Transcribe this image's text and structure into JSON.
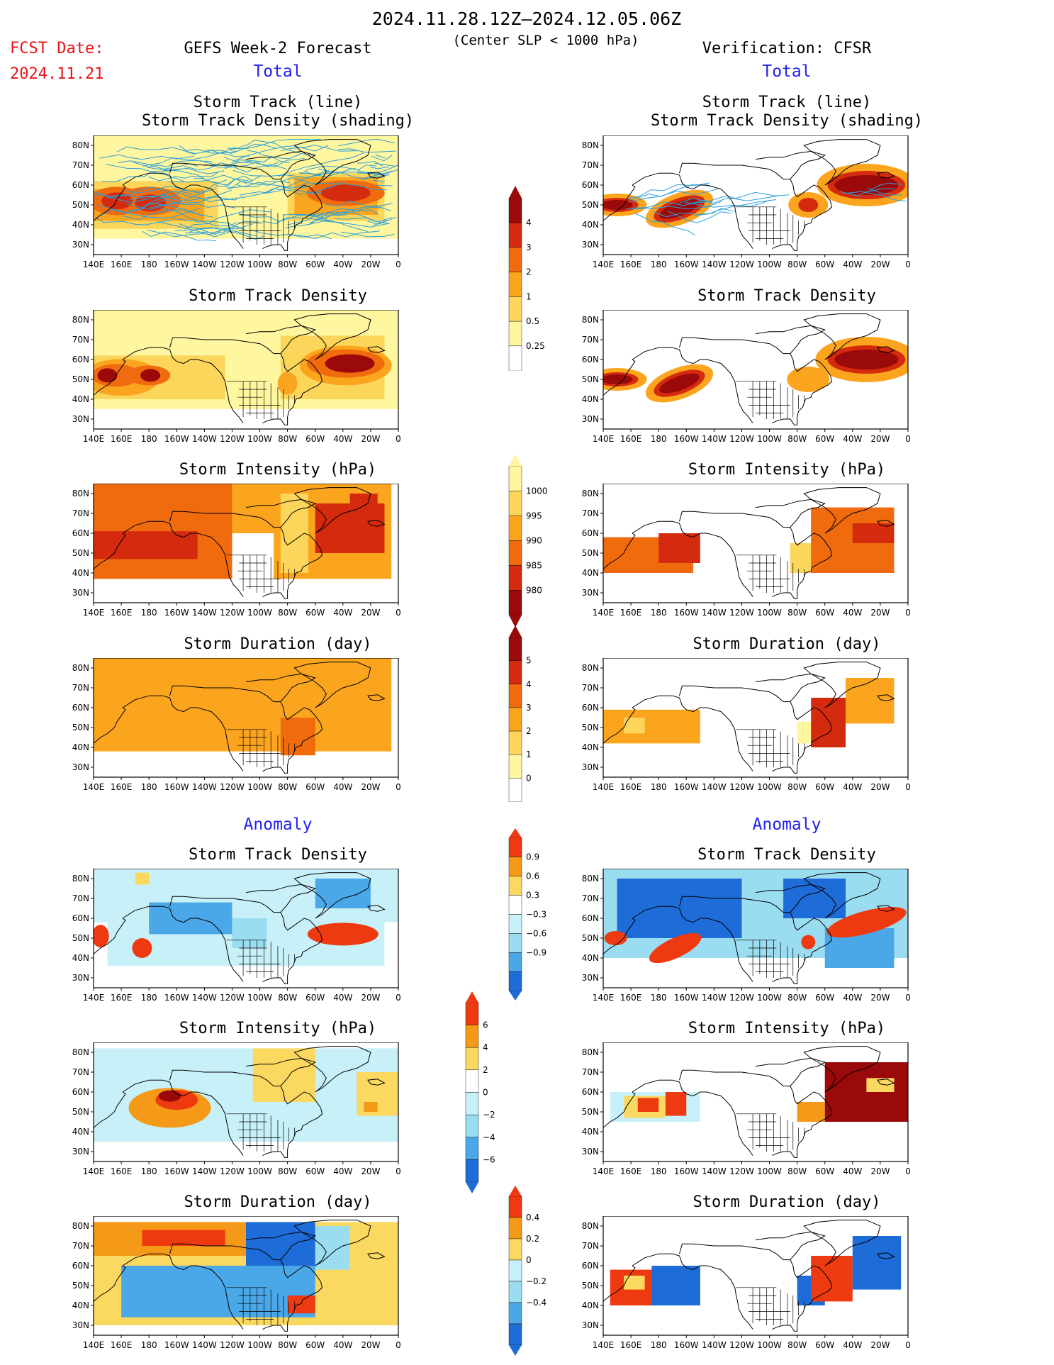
{
  "header": {
    "date_range": "2024.11.28.12Z–2024.12.05.06Z",
    "condition": "(Center SLP < 1000 hPa)",
    "fcst_label": "FCST Date:",
    "fcst_date": "2024.11.21",
    "left_model": "GEFS Week-2 Forecast",
    "right_model": "Verification: CFSR"
  },
  "sections": {
    "total": "Total",
    "anomaly": "Anomaly"
  },
  "panel_titles": {
    "track_line": "Storm Track (line)",
    "track_shading": "Storm Track Density (shading)",
    "density": "Storm Track Density",
    "intensity": "Storm Intensity (hPa)",
    "duration": "Storm Duration (day)"
  },
  "axes": {
    "lat": [
      "80N",
      "70N",
      "60N",
      "50N",
      "40N",
      "30N"
    ],
    "lon": [
      "140E",
      "160E",
      "180",
      "160W",
      "140W",
      "120W",
      "100W",
      "80W",
      "60W",
      "40W",
      "20W",
      "0"
    ]
  },
  "colorbars": {
    "density_total": [
      "4",
      "3",
      "2",
      "1",
      "0.5",
      "0.25"
    ],
    "intensity_total": [
      "1000",
      "995",
      "990",
      "985",
      "980"
    ],
    "duration_total": [
      "5",
      "4",
      "3",
      "2",
      "1",
      "0"
    ],
    "density_anom": [
      "0.9",
      "0.6",
      "0.3",
      "−0.3",
      "−0.6",
      "−0.9"
    ],
    "intensity_anom": [
      "6",
      "4",
      "2",
      "0",
      "−2",
      "−4",
      "−6"
    ],
    "duration_anom": [
      "0.4",
      "0.2",
      "0",
      "−0.2",
      "−0.4"
    ]
  },
  "colors": {
    "warm": [
      "#fff6a0",
      "#fbd65a",
      "#fba51e",
      "#f06a0e",
      "#d42a0e",
      "#9a0a0a"
    ],
    "cool": [
      "#c8f0f8",
      "#9adcf0",
      "#4aa8e8",
      "#1e6cd8"
    ],
    "track_line": "#2a9fd8",
    "anom_red": "#ee3a10",
    "anom_orange": "#f49a18",
    "anom_yellow": "#fbd860"
  }
}
